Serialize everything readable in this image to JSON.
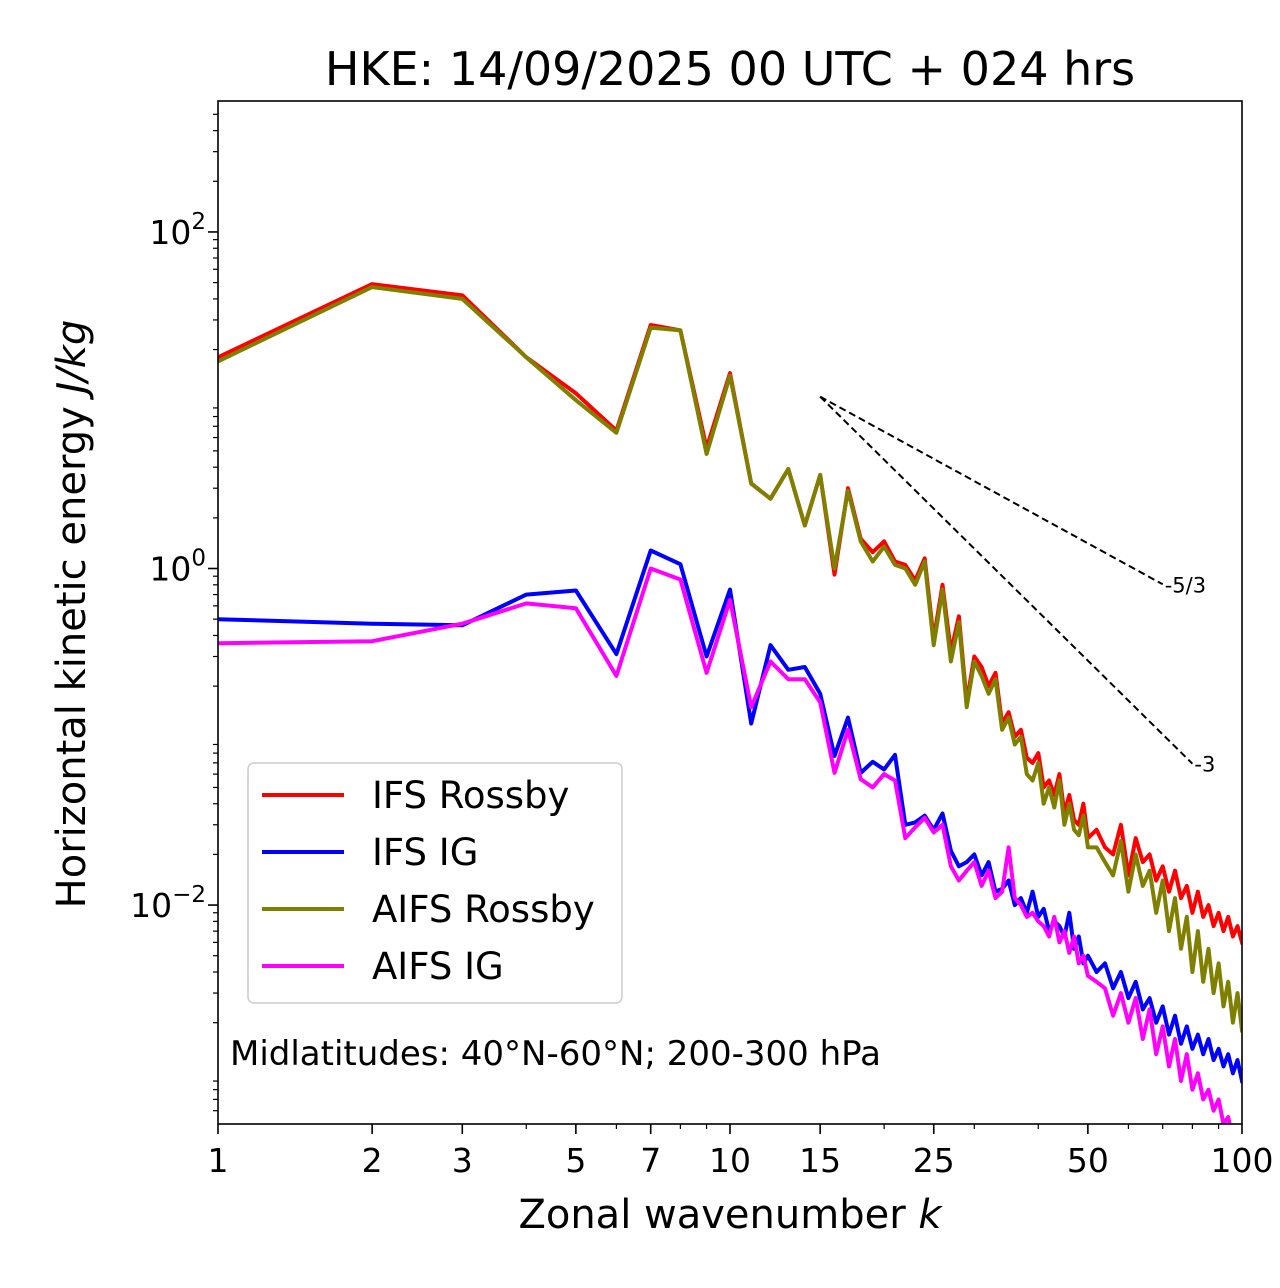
{
  "chart_data": {
    "type": "line",
    "title": "HKE: 14/09/2025 00 UTC + 024 hrs",
    "xlabel": "Zonal wavenumber",
    "xlabel_symbol": "k",
    "ylabel": "Horizontal kinetic energy",
    "ylabel_units": "J/kg",
    "xscale": "log",
    "yscale": "log",
    "xlim": [
      1,
      100
    ],
    "ylim": [
      0.0005,
      600
    ],
    "xticks": [
      {
        "value": 1,
        "label": "1"
      },
      {
        "value": 2,
        "label": "2"
      },
      {
        "value": 3,
        "label": "3"
      },
      {
        "value": 5,
        "label": "5"
      },
      {
        "value": 7,
        "label": "7"
      },
      {
        "value": 10,
        "label": "10"
      },
      {
        "value": 15,
        "label": "15"
      },
      {
        "value": 25,
        "label": "25"
      },
      {
        "value": 50,
        "label": "50"
      },
      {
        "value": 100,
        "label": "100"
      }
    ],
    "yticks": [
      {
        "value": 100,
        "base": "10",
        "exponent": "2"
      },
      {
        "value": 1,
        "base": "10",
        "exponent": "0"
      },
      {
        "value": 0.01,
        "base": "10",
        "exponent": "−2"
      }
    ],
    "legend_position": "lower-left",
    "annotation": "Midlatitudes: 40°N-60°N; 200-300 hPa",
    "reference_lines": [
      {
        "label": "-5/3",
        "slope": -1.6667,
        "x_start": 15,
        "x_end": 70,
        "y_start": 10.5
      },
      {
        "label": "-3",
        "slope": -3,
        "x_start": 15,
        "x_end": 80,
        "y_start": 10.5
      }
    ],
    "series": [
      {
        "name": "IFS Rossby",
        "color": "#ff0000",
        "x": [
          1,
          2,
          3,
          4,
          5,
          6,
          7,
          8,
          9,
          10,
          11,
          12,
          13,
          14,
          15,
          16,
          17,
          18,
          19,
          20,
          21,
          22,
          23,
          24,
          25,
          26,
          27,
          28,
          29,
          30,
          31,
          32,
          33,
          34,
          35,
          36,
          37,
          38,
          39,
          40,
          41,
          42,
          43,
          44,
          45,
          46,
          47,
          48,
          49,
          50,
          52,
          54,
          56,
          58,
          60,
          62,
          64,
          66,
          68,
          70,
          72,
          74,
          76,
          78,
          80,
          82,
          84,
          86,
          88,
          90,
          92,
          94,
          96,
          98,
          100
        ],
        "values": [
          18,
          49,
          42,
          18,
          11,
          6.6,
          28,
          26,
          5.2,
          14.5,
          3.2,
          2.6,
          3.9,
          1.8,
          3.6,
          0.92,
          3.0,
          1.5,
          1.25,
          1.45,
          1.1,
          1.05,
          0.85,
          1.15,
          0.38,
          0.8,
          0.32,
          0.52,
          0.16,
          0.3,
          0.26,
          0.2,
          0.24,
          0.12,
          0.14,
          0.1,
          0.11,
          0.075,
          0.07,
          0.08,
          0.05,
          0.055,
          0.045,
          0.06,
          0.035,
          0.045,
          0.032,
          0.03,
          0.04,
          0.025,
          0.028,
          0.022,
          0.02,
          0.03,
          0.015,
          0.025,
          0.018,
          0.02,
          0.014,
          0.017,
          0.012,
          0.016,
          0.011,
          0.013,
          0.009,
          0.012,
          0.0085,
          0.01,
          0.0075,
          0.009,
          0.007,
          0.0085,
          0.0065,
          0.0075,
          0.006
        ]
      },
      {
        "name": "IFS IG",
        "color": "#0000ff",
        "x": [
          1,
          2,
          3,
          4,
          5,
          6,
          7,
          8,
          9,
          10,
          11,
          12,
          13,
          14,
          15,
          16,
          17,
          18,
          19,
          20,
          21,
          22,
          23,
          24,
          25,
          26,
          27,
          28,
          29,
          30,
          31,
          32,
          33,
          34,
          35,
          36,
          37,
          38,
          39,
          40,
          41,
          42,
          43,
          44,
          45,
          46,
          47,
          48,
          49,
          50,
          52,
          54,
          56,
          58,
          60,
          62,
          64,
          66,
          68,
          70,
          72,
          74,
          76,
          78,
          80,
          82,
          84,
          86,
          88,
          90,
          92,
          94,
          96,
          98,
          100
        ],
        "values": [
          0.5,
          0.47,
          0.46,
          0.7,
          0.74,
          0.31,
          1.28,
          1.06,
          0.3,
          0.75,
          0.12,
          0.35,
          0.25,
          0.26,
          0.18,
          0.077,
          0.13,
          0.061,
          0.071,
          0.064,
          0.078,
          0.03,
          0.031,
          0.034,
          0.028,
          0.035,
          0.021,
          0.017,
          0.018,
          0.02,
          0.015,
          0.018,
          0.012,
          0.0125,
          0.014,
          0.01,
          0.011,
          0.009,
          0.012,
          0.0085,
          0.0095,
          0.007,
          0.008,
          0.0075,
          0.0065,
          0.009,
          0.0055,
          0.0065,
          0.0045,
          0.005,
          0.004,
          0.0045,
          0.0032,
          0.004,
          0.0028,
          0.0035,
          0.0024,
          0.0028,
          0.002,
          0.0025,
          0.0017,
          0.0022,
          0.0015,
          0.0019,
          0.0014,
          0.0017,
          0.0013,
          0.0016,
          0.0012,
          0.0014,
          0.0011,
          0.0013,
          0.001,
          0.0012,
          0.0009
        ]
      },
      {
        "name": "AIFS Rossby",
        "color": "#808000",
        "x": [
          1,
          2,
          3,
          4,
          5,
          6,
          7,
          8,
          9,
          10,
          11,
          12,
          13,
          14,
          15,
          16,
          17,
          18,
          19,
          20,
          21,
          22,
          23,
          24,
          25,
          26,
          27,
          28,
          29,
          30,
          31,
          32,
          33,
          34,
          35,
          36,
          37,
          38,
          39,
          40,
          41,
          42,
          43,
          44,
          45,
          46,
          47,
          48,
          49,
          50,
          52,
          54,
          56,
          58,
          60,
          62,
          64,
          66,
          68,
          70,
          72,
          74,
          76,
          78,
          80,
          82,
          84,
          86,
          88,
          90,
          92,
          94,
          96,
          98,
          100
        ],
        "values": [
          17,
          47,
          40,
          18,
          10,
          6.4,
          27,
          26,
          4.8,
          14,
          3.2,
          2.6,
          3.9,
          1.8,
          3.6,
          1.0,
          2.9,
          1.45,
          1.1,
          1.35,
          1.05,
          1.0,
          0.8,
          1.1,
          0.35,
          0.75,
          0.28,
          0.48,
          0.15,
          0.28,
          0.23,
          0.18,
          0.22,
          0.11,
          0.13,
          0.09,
          0.1,
          0.06,
          0.055,
          0.07,
          0.04,
          0.05,
          0.038,
          0.055,
          0.03,
          0.04,
          0.028,
          0.026,
          0.034,
          0.022,
          0.022,
          0.018,
          0.015,
          0.024,
          0.012,
          0.02,
          0.013,
          0.016,
          0.009,
          0.014,
          0.007,
          0.011,
          0.0055,
          0.0085,
          0.004,
          0.007,
          0.0035,
          0.0055,
          0.003,
          0.0045,
          0.0025,
          0.0035,
          0.002,
          0.003,
          0.0018
        ]
      },
      {
        "name": "AIFS IG",
        "color": "#ff00ff",
        "x": [
          1,
          2,
          3,
          4,
          5,
          6,
          7,
          8,
          9,
          10,
          11,
          12,
          13,
          14,
          15,
          16,
          17,
          18,
          19,
          20,
          21,
          22,
          23,
          24,
          25,
          26,
          27,
          28,
          29,
          30,
          31,
          32,
          33,
          34,
          35,
          36,
          37,
          38,
          39,
          40,
          41,
          42,
          43,
          44,
          45,
          46,
          47,
          48,
          49,
          50,
          52,
          54,
          56,
          58,
          60,
          62,
          64,
          66,
          68,
          70,
          72,
          74,
          76,
          78,
          80,
          82,
          84,
          86,
          88,
          90,
          92,
          94,
          96,
          98,
          100
        ],
        "values": [
          0.36,
          0.37,
          0.47,
          0.62,
          0.58,
          0.23,
          1.0,
          0.86,
          0.24,
          0.65,
          0.15,
          0.28,
          0.22,
          0.22,
          0.16,
          0.061,
          0.11,
          0.056,
          0.05,
          0.06,
          0.055,
          0.025,
          0.029,
          0.033,
          0.027,
          0.03,
          0.017,
          0.014,
          0.016,
          0.018,
          0.013,
          0.016,
          0.011,
          0.012,
          0.022,
          0.011,
          0.01,
          0.0085,
          0.009,
          0.008,
          0.0075,
          0.0065,
          0.0085,
          0.006,
          0.007,
          0.0052,
          0.0065,
          0.0045,
          0.005,
          0.0038,
          0.0035,
          0.0032,
          0.0022,
          0.003,
          0.002,
          0.0028,
          0.0016,
          0.0024,
          0.0013,
          0.0019,
          0.0011,
          0.0016,
          0.0009,
          0.0013,
          0.0008,
          0.001,
          0.0007,
          0.0008,
          0.0006,
          0.0007,
          0.0005,
          0.00055,
          0.0004,
          0.00045,
          0.0004
        ]
      }
    ]
  }
}
